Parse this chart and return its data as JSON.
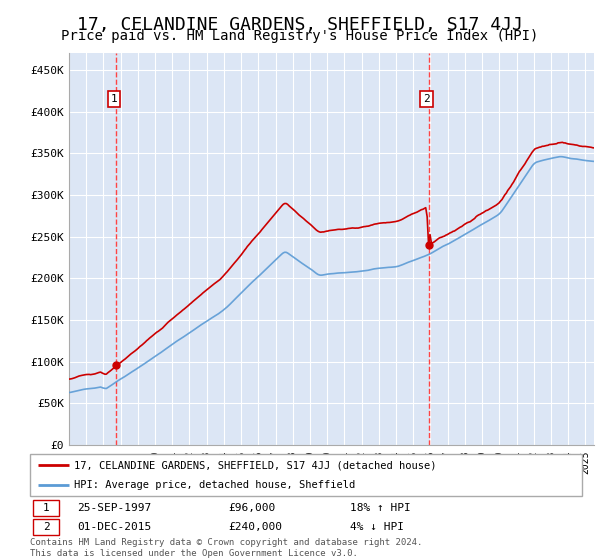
{
  "title": "17, CELANDINE GARDENS, SHEFFIELD, S17 4JJ",
  "subtitle": "Price paid vs. HM Land Registry's House Price Index (HPI)",
  "title_fontsize": 13,
  "subtitle_fontsize": 10,
  "background_color": "#ffffff",
  "plot_bg_color": "#dce6f5",
  "grid_color": "#ffffff",
  "sale1_price": 96000,
  "sale1_year": 1997.75,
  "sale1_date_str": "25-SEP-1997",
  "sale1_hpi_pct": "18% ↑ HPI",
  "sale2_price": 240000,
  "sale2_year": 2015.917,
  "sale2_date_str": "01-DEC-2015",
  "sale2_hpi_pct": "4% ↓ HPI",
  "legend_line1": "17, CELANDINE GARDENS, SHEFFIELD, S17 4JJ (detached house)",
  "legend_line2": "HPI: Average price, detached house, Sheffield",
  "footer": "Contains HM Land Registry data © Crown copyright and database right 2024.\nThis data is licensed under the Open Government Licence v3.0.",
  "red_color": "#cc0000",
  "blue_color": "#5b9bd5",
  "dashed_red": "#ff4444",
  "ylim": [
    0,
    470000
  ],
  "yticks": [
    0,
    50000,
    100000,
    150000,
    200000,
    250000,
    300000,
    350000,
    400000,
    450000
  ],
  "ytick_labels": [
    "£0",
    "£50K",
    "£100K",
    "£150K",
    "£200K",
    "£250K",
    "£300K",
    "£350K",
    "£400K",
    "£450K"
  ],
  "xlim_start": 1995,
  "xlim_end": 2025.5
}
